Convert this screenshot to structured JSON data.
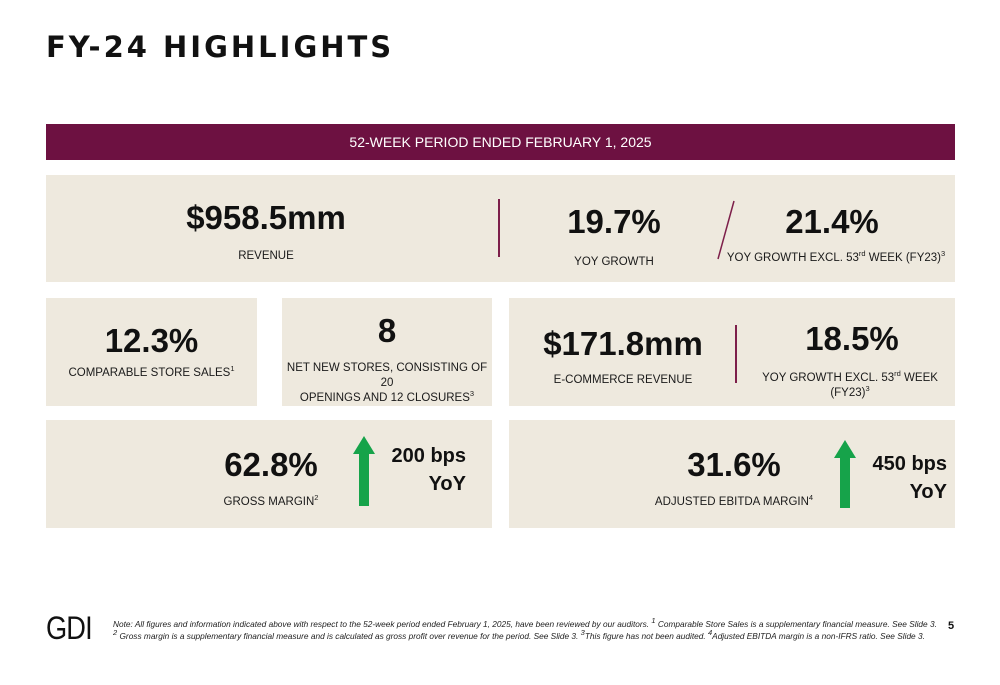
{
  "title": "FY-24 HIGHLIGHTS",
  "banner": "52-WEEK PERIOD ENDED FEBRUARY 1, 2025",
  "revenue": {
    "value": "$958.5mm",
    "label": "REVENUE"
  },
  "yoy_growth": {
    "value": "19.7%",
    "label": "YOY GROWTH"
  },
  "yoy_growth_excl": {
    "value": "21.4%",
    "label_pre": "YOY GROWTH EXCL. 53",
    "label_sup": "rd",
    "label_post": " WEEK (FY23)",
    "note_sup": "3"
  },
  "comparable": {
    "value": "12.3%",
    "label": "COMPARABLE STORE SALES",
    "note_sup": "1"
  },
  "stores": {
    "value": "8",
    "label_line1": "NET NEW STORES, CONSISTING OF 20",
    "label_line2": "OPENINGS AND 12 CLOSURES",
    "note_sup": "3"
  },
  "ecommerce": {
    "value": "$171.8mm",
    "label": "E-COMMERCE REVENUE"
  },
  "ecommerce_growth": {
    "value": "18.5%",
    "label_pre": "YOY GROWTH EXCL. 53",
    "label_sup": "rd",
    "label_post": " WEEK (FY23)",
    "note_sup": "3"
  },
  "gross_margin": {
    "value": "62.8%",
    "label": "GROSS MARGIN",
    "note_sup": "2",
    "change_line1": "200 bps",
    "change_line2": "YoY",
    "arrow": "arrow-up-icon",
    "arrow_color": "#16a34a"
  },
  "ebitda": {
    "value": "31.6%",
    "label": "ADJUSTED EBITDA MARGIN",
    "note_sup": "4",
    "change_line1": "450 bps",
    "change_line2": "YoY",
    "arrow": "arrow-up-icon",
    "arrow_color": "#16a34a"
  },
  "colors": {
    "banner": "#6d1141",
    "card": "#eee9de",
    "divider": "#7d1f4a"
  },
  "footer": {
    "logo": "GDI",
    "note_1": "Note: All figures and information indicated above with respect to the 52-week period ended February 1, 2025, have been reviewed by our auditors. ",
    "sup_1": "1",
    "note_2": " Comparable Store Sales is a supplementary financial measure. See Slide 3. ",
    "sup_2": "2",
    "note_3": " Gross margin is a supplementary financial measure and is calculated as gross profit over revenue for the period. See Slide 3. ",
    "sup_3": "3",
    "note_4": "This figure has not been audited. ",
    "sup_4": "4",
    "note_5": "Adjusted EBITDA margin is a non-IFRS ratio. See Slide 3.",
    "page": "5"
  }
}
